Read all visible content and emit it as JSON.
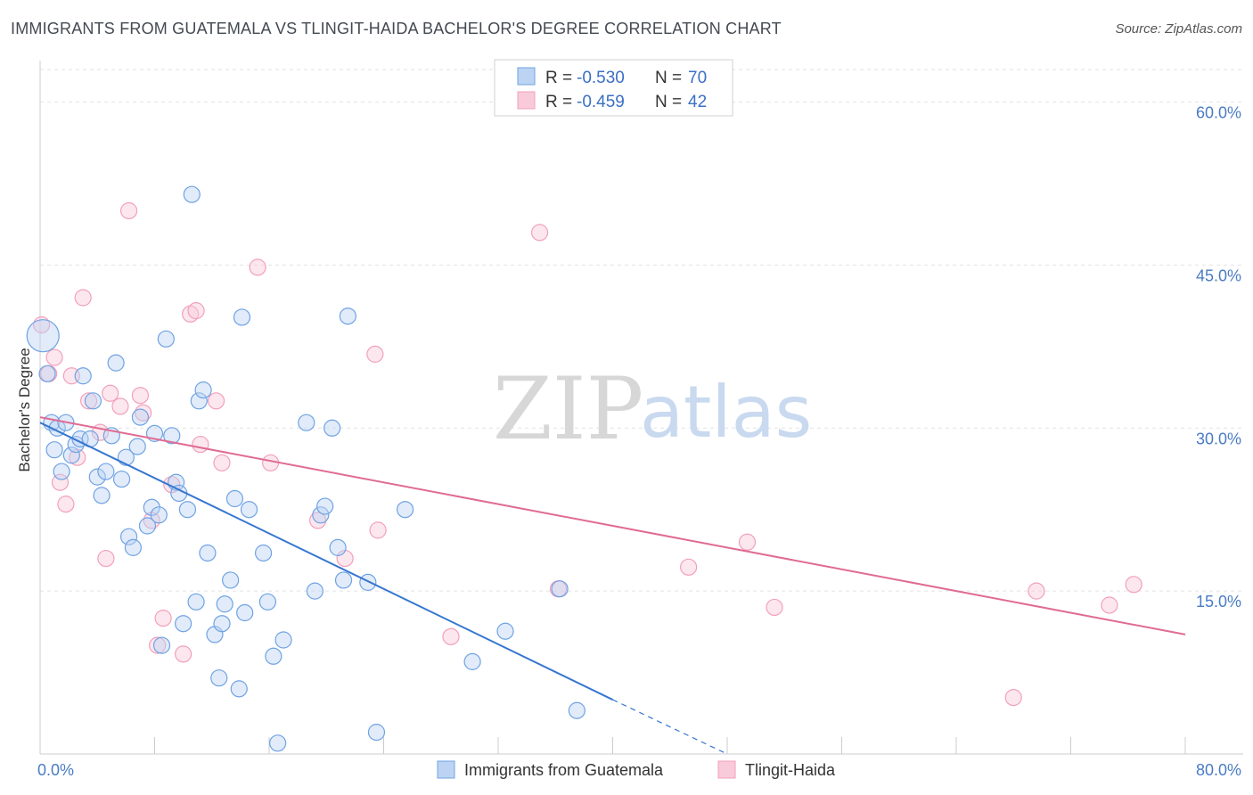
{
  "title": "IMMIGRANTS FROM GUATEMALA VS TLINGIT-HAIDA BACHELOR'S DEGREE CORRELATION CHART",
  "source": "Source: ZipAtlas.com",
  "watermark": {
    "zip": "ZIP",
    "atlas": "atlas"
  },
  "colors": {
    "blue": "#6fa3e3",
    "blue_line": "#3676d0",
    "pink": "#f2a0bb",
    "pink_line": "#e06b93",
    "tick": "#4a7cc4"
  },
  "legend": {
    "rows": [
      {
        "r_label": "R =",
        "r_value": "-0.530",
        "n_label": "N =",
        "n_value": "70"
      },
      {
        "r_label": "R =",
        "r_value": "-0.459",
        "n_label": "N =",
        "n_value": "42"
      }
    ]
  },
  "chart_data": {
    "type": "scatter",
    "ylabel": "Bachelor's Degree",
    "xlim": [
      0,
      80
    ],
    "ylim": [
      0,
      63
    ],
    "y_ticks": [
      {
        "value": 15,
        "label": "15.0%"
      },
      {
        "value": 30,
        "label": "30.0%"
      },
      {
        "value": 45,
        "label": "45.0%"
      },
      {
        "value": 60,
        "label": "60.0%"
      }
    ],
    "x_tick_labels": [
      {
        "value": 0,
        "label": "0.0%"
      },
      {
        "value": 80,
        "label": "80.0%"
      }
    ],
    "x_minor_ticks": [
      0,
      8,
      16,
      24,
      32,
      40,
      48,
      56,
      64,
      72,
      80
    ],
    "grid": true,
    "series": [
      {
        "name": "Immigrants from Guatemala",
        "color": "#6fa3e3",
        "points": [
          [
            0.2,
            38.5
          ],
          [
            0.5,
            35.0
          ],
          [
            0.8,
            30.5
          ],
          [
            1.0,
            28.0
          ],
          [
            1.2,
            30.0
          ],
          [
            1.5,
            26.0
          ],
          [
            1.8,
            30.5
          ],
          [
            2.2,
            27.5
          ],
          [
            2.5,
            28.5
          ],
          [
            2.8,
            29.0
          ],
          [
            3.0,
            34.8
          ],
          [
            3.5,
            29.0
          ],
          [
            3.7,
            32.5
          ],
          [
            4.0,
            25.5
          ],
          [
            4.3,
            23.8
          ],
          [
            4.6,
            26.0
          ],
          [
            5.0,
            29.3
          ],
          [
            5.3,
            36.0
          ],
          [
            5.7,
            25.3
          ],
          [
            6.0,
            27.3
          ],
          [
            6.2,
            20.0
          ],
          [
            6.5,
            19.0
          ],
          [
            6.8,
            28.3
          ],
          [
            7.0,
            31.0
          ],
          [
            7.5,
            21.0
          ],
          [
            7.8,
            22.7
          ],
          [
            8.0,
            29.5
          ],
          [
            8.3,
            22.0
          ],
          [
            8.5,
            10.0
          ],
          [
            8.8,
            38.2
          ],
          [
            9.2,
            29.3
          ],
          [
            9.5,
            25.0
          ],
          [
            9.7,
            24.0
          ],
          [
            10.0,
            12.0
          ],
          [
            10.3,
            22.5
          ],
          [
            10.6,
            51.5
          ],
          [
            10.9,
            14.0
          ],
          [
            11.1,
            32.5
          ],
          [
            11.4,
            33.5
          ],
          [
            11.7,
            18.5
          ],
          [
            12.2,
            11.0
          ],
          [
            12.5,
            7.0
          ],
          [
            12.7,
            12.0
          ],
          [
            12.9,
            13.8
          ],
          [
            13.3,
            16.0
          ],
          [
            13.6,
            23.5
          ],
          [
            13.9,
            6.0
          ],
          [
            14.1,
            40.2
          ],
          [
            14.3,
            13.0
          ],
          [
            14.6,
            22.5
          ],
          [
            15.6,
            18.5
          ],
          [
            15.9,
            14.0
          ],
          [
            16.3,
            9.0
          ],
          [
            16.6,
            1.0
          ],
          [
            17.0,
            10.5
          ],
          [
            18.6,
            30.5
          ],
          [
            19.2,
            15.0
          ],
          [
            19.6,
            22.0
          ],
          [
            19.9,
            22.8
          ],
          [
            20.4,
            30.0
          ],
          [
            20.8,
            19.0
          ],
          [
            21.2,
            16.0
          ],
          [
            21.5,
            40.3
          ],
          [
            22.9,
            15.8
          ],
          [
            23.5,
            2.0
          ],
          [
            25.5,
            22.5
          ],
          [
            30.2,
            8.5
          ],
          [
            32.5,
            11.3
          ],
          [
            36.3,
            15.2
          ],
          [
            37.5,
            4.0
          ]
        ]
      },
      {
        "name": "Tlingit-Haida",
        "color": "#f2a0bb",
        "points": [
          [
            0.1,
            39.5
          ],
          [
            0.6,
            35.0
          ],
          [
            1.0,
            36.5
          ],
          [
            1.4,
            25.0
          ],
          [
            1.8,
            23.0
          ],
          [
            2.2,
            34.8
          ],
          [
            2.6,
            27.3
          ],
          [
            3.0,
            42.0
          ],
          [
            3.4,
            32.5
          ],
          [
            4.2,
            29.6
          ],
          [
            4.6,
            18.0
          ],
          [
            4.9,
            33.2
          ],
          [
            5.6,
            32.0
          ],
          [
            6.2,
            50.0
          ],
          [
            7.0,
            33.0
          ],
          [
            7.2,
            31.4
          ],
          [
            7.8,
            21.5
          ],
          [
            8.2,
            10.0
          ],
          [
            8.6,
            12.5
          ],
          [
            9.2,
            24.8
          ],
          [
            10.0,
            9.2
          ],
          [
            10.5,
            40.5
          ],
          [
            10.9,
            40.8
          ],
          [
            11.2,
            28.5
          ],
          [
            12.3,
            32.5
          ],
          [
            12.7,
            26.8
          ],
          [
            15.2,
            44.8
          ],
          [
            16.1,
            26.8
          ],
          [
            19.4,
            21.5
          ],
          [
            21.3,
            18.0
          ],
          [
            23.4,
            36.8
          ],
          [
            23.6,
            20.6
          ],
          [
            28.7,
            10.8
          ],
          [
            34.9,
            48.0
          ],
          [
            36.2,
            15.2
          ],
          [
            45.3,
            17.2
          ],
          [
            49.4,
            19.5
          ],
          [
            51.3,
            13.5
          ],
          [
            68.0,
            5.2
          ],
          [
            69.6,
            15.0
          ],
          [
            74.7,
            13.7
          ],
          [
            76.4,
            15.6
          ]
        ]
      }
    ],
    "trend_lines": [
      {
        "series": "Immigrants from Guatemala",
        "x_start": 0,
        "y_start": 30.5,
        "x_end": 40.0,
        "y_end": 5.0,
        "dashed_to_x": 48.0,
        "dashed_to_y": 0.0
      },
      {
        "series": "Tlingit-Haida",
        "x_start": 0,
        "y_start": 31.0,
        "x_end": 80.0,
        "y_end": 11.0
      }
    ]
  }
}
